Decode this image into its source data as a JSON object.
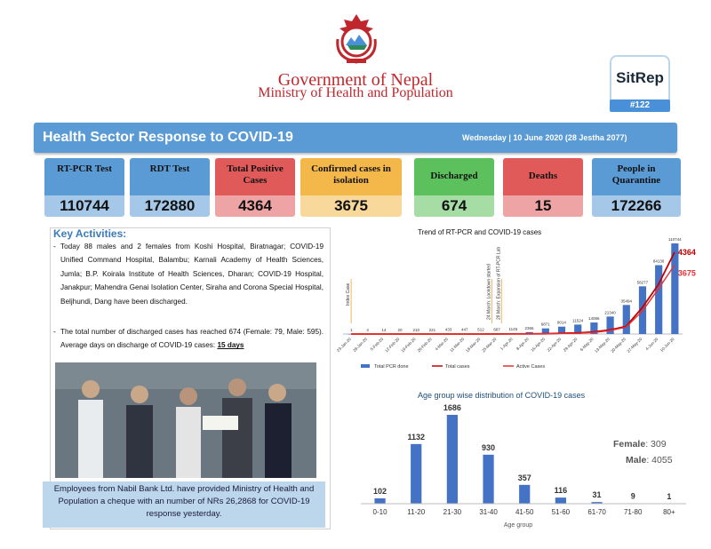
{
  "header": {
    "government": "Government of Nepal",
    "ministry": "Ministry of Health and Population",
    "sitrep_label": "SitRep",
    "sitrep_number": "#122"
  },
  "banner": {
    "title": "Health Sector Response to COVID-19",
    "date": "Wednesday | 10 June 2020 (28 Jestha 2077)"
  },
  "stats": [
    {
      "label": "RT-PCR Test",
      "value": "110744",
      "color": "#5b9bd5"
    },
    {
      "label": "RDT Test",
      "value": "172880",
      "color": "#5b9bd5"
    },
    {
      "label": "Total Positive Cases",
      "value": "4364",
      "color": "#e05a5a"
    },
    {
      "label": "Confirmed cases in isolation",
      "value": "3675",
      "color": "#f4b84a"
    },
    {
      "label": "Discharged",
      "value": "674",
      "color": "#5cc15c"
    },
    {
      "label": "Deaths",
      "value": "15",
      "color": "#e05a5a"
    },
    {
      "label": "People in Quarantine",
      "value": "172266",
      "color": "#5b9bd5"
    }
  ],
  "key_activities": {
    "title": "Key Activities:",
    "bullets": [
      "Today 88 males and 2 females from Koshi Hospital, Biratnagar; COVID-19 Unified Command Hospital, Balambu; Karnali Academy of Health Sciences, Jumla; B.P. Koirala Institute of Health Sciences, Dharan; COVID-19 Hospital, Janakpur; Mahendra Genai Isolation Center, Siraha and Corona Special Hospital, Beljhundi, Dang have been discharged.",
      "The total number of discharged cases has reached 674 (Female: 79, Male: 595). Average days on discharge of COVID-19 cases:"
    ],
    "avg_days": "15 days"
  },
  "photo_caption": "Employees from Nabil Bank Ltd. have provided Ministry of Health and Population a cheque with an number of NRs 26,2868 for COVID-19 response yesterday.",
  "chart_data": [
    {
      "type": "bar",
      "title": "Trend of RT-PCR and COVID-19 cases",
      "categories": [
        "23-Jan-20",
        "29-Jan-20",
        "5-Feb-20",
        "12-Feb-20",
        "19-Feb-20",
        "26-Feb-20",
        "4-Mar-20",
        "11-Mar-20",
        "18-Mar-20",
        "25-Mar-20",
        "1-Apr-20",
        "8-Apr-20",
        "15-Apr-20",
        "22-Apr-20",
        "29-Apr-20",
        "6-May-20",
        "13-May-20",
        "20-May-20",
        "27-May-20",
        "4-Jun-20",
        "10-Jun-20"
      ],
      "series": [
        {
          "name": "Total PCR done",
          "values": [
            1,
            4,
            14,
            20,
            210,
            221,
            433,
            447,
            512,
            687,
            1145,
            2366,
            6871,
            9014,
            11524,
            14086,
            21340,
            35494,
            58277,
            84136,
            110744
          ],
          "color": "#4472c4"
        },
        {
          "name": "Total cases",
          "values": [
            1,
            1,
            1,
            1,
            1,
            1,
            1,
            1,
            1,
            2,
            5,
            9,
            16,
            42,
            57,
            110,
            217,
            402,
            1401,
            2634,
            4364
          ],
          "color": "#c00000"
        },
        {
          "name": "Active Cases",
          "values": [
            0,
            0,
            0,
            0,
            0,
            0,
            0,
            0,
            1,
            2,
            5,
            8,
            13,
            32,
            40,
            78,
            183,
            366,
            1205,
            2398,
            3675
          ],
          "color": "#e83030"
        }
      ],
      "end_labels": [
        "4364",
        "3675"
      ],
      "annotations": [
        "Index Case",
        "24 March: Lockdown started",
        "29 March: Expansion of RT-PCR Lab"
      ]
    },
    {
      "type": "bar",
      "title": "Age group wise distribution of COVID-19 cases",
      "categories": [
        "0-10",
        "11-20",
        "21-30",
        "31-40",
        "41-50",
        "51-60",
        "61-70",
        "71-80",
        "80+"
      ],
      "values": [
        102,
        1132,
        1686,
        930,
        357,
        116,
        31,
        9,
        1
      ],
      "xlabel": "Age group",
      "color": "#4472c4",
      "female_label": "Female",
      "female_value": ": 309",
      "male_label": "Male",
      "male_value": ": 4055"
    }
  ]
}
